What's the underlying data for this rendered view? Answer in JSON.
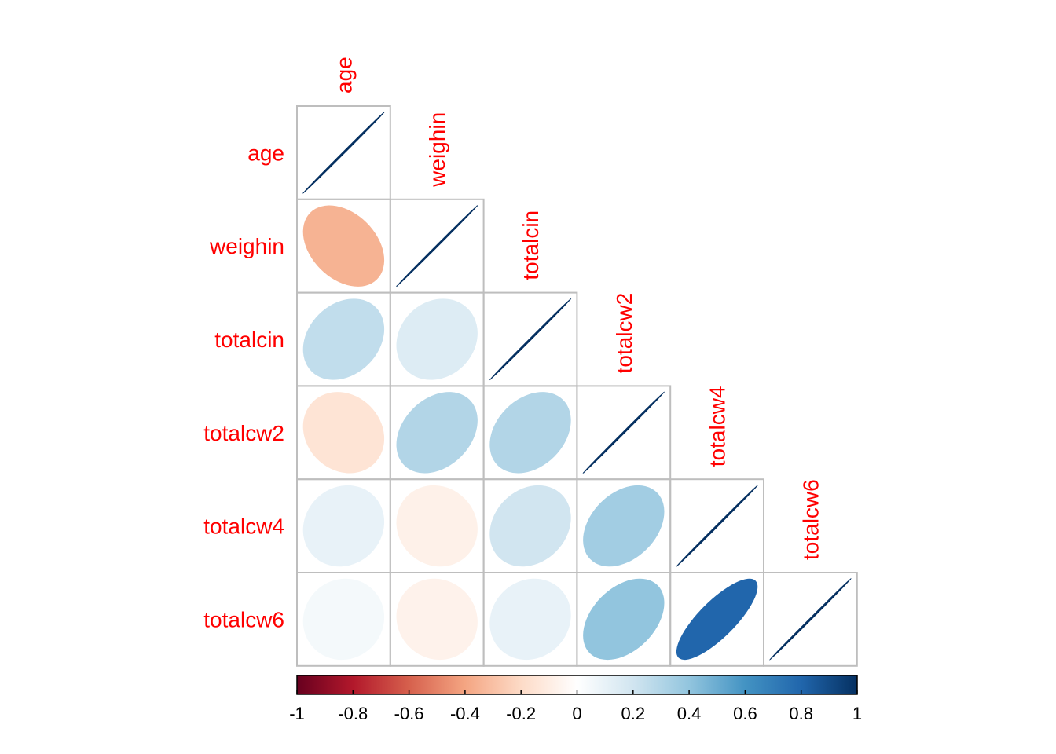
{
  "chart_data": {
    "type": "heatmap",
    "method": "ellipse",
    "layout": "lower-triangle",
    "variables": [
      "age",
      "weighin",
      "totalcin",
      "totalcw2",
      "totalcw4",
      "totalcw6"
    ],
    "matrix": [
      [
        1.0,
        -0.35,
        0.25,
        -0.15,
        0.1,
        0.05
      ],
      [
        -0.35,
        1.0,
        0.15,
        0.3,
        -0.08,
        -0.07
      ],
      [
        0.25,
        0.15,
        1.0,
        0.3,
        0.2,
        0.1
      ],
      [
        -0.15,
        0.3,
        0.3,
        1.0,
        0.35,
        0.4
      ],
      [
        0.1,
        -0.08,
        0.2,
        0.35,
        1.0,
        0.8
      ],
      [
        0.05,
        -0.07,
        0.1,
        0.4,
        0.8,
        1.0
      ]
    ],
    "colorbar": {
      "range": [
        -1,
        1
      ],
      "ticks": [
        "-1",
        "-0.8",
        "-0.6",
        "-0.4",
        "-0.2",
        "0",
        "0.2",
        "0.4",
        "0.6",
        "0.8",
        "1"
      ],
      "tick_values": [
        -1,
        -0.8,
        -0.6,
        -0.4,
        -0.2,
        0,
        0.2,
        0.4,
        0.6,
        0.8,
        1
      ],
      "palette": [
        "#67001f",
        "#b2182b",
        "#d6604d",
        "#f4a582",
        "#fddbc7",
        "#ffffff",
        "#d1e5f0",
        "#92c5de",
        "#4393c3",
        "#2166ac",
        "#053061"
      ],
      "placement": "bottom"
    },
    "label_color": "#ff0000",
    "grid_color": "#bebebe"
  }
}
